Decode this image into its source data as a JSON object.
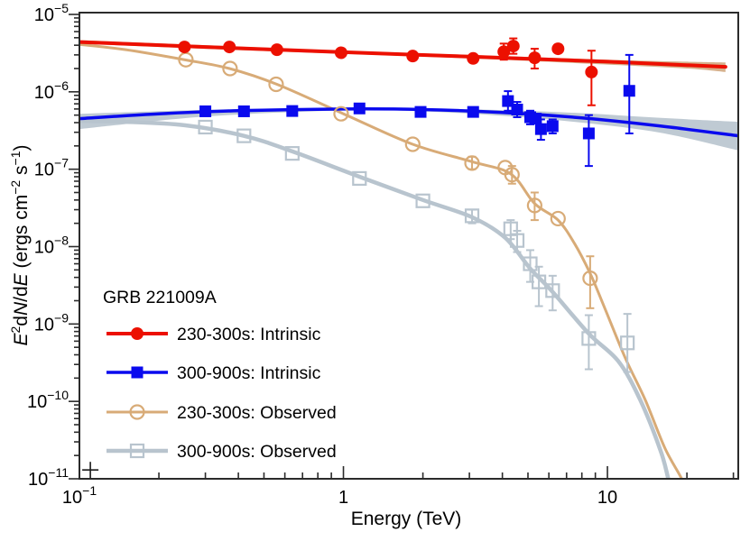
{
  "chart_data": {
    "type": "scatter-line",
    "title": "GRB 221009A",
    "xlabel": "Energy (TeV)",
    "ylabel_parts": [
      {
        "t": "E",
        "italic": true
      },
      {
        "t": "2",
        "sup": true
      },
      {
        "t": "d"
      },
      {
        "t": "N",
        "italic": true
      },
      {
        "t": "/d"
      },
      {
        "t": "E",
        "italic": true
      },
      {
        "t": " (ergs cm"
      },
      {
        "t": "−2",
        "sup": true
      },
      {
        "t": " s"
      },
      {
        "t": "−1",
        "sup": true
      },
      {
        "t": ")"
      }
    ],
    "xscale": "log",
    "yscale": "log",
    "xlim": [
      0.1,
      31.3
    ],
    "ylim": [
      1e-11,
      1e-05
    ],
    "background": "#ffffff",
    "frame_color": "#2b2b2b",
    "grid": false,
    "x_ticks": [
      {
        "v": 0.1,
        "base": "10",
        "exp": "−1"
      },
      {
        "v": 1,
        "base": "1",
        "exp": ""
      },
      {
        "v": 10,
        "base": "10",
        "exp": ""
      }
    ],
    "y_ticks": [
      {
        "v": 1e-05,
        "base": "10",
        "exp": "−5"
      },
      {
        "v": 1e-06,
        "base": "10",
        "exp": "−6"
      },
      {
        "v": 1e-07,
        "base": "10",
        "exp": "−7"
      },
      {
        "v": 1e-08,
        "base": "10",
        "exp": "−8"
      },
      {
        "v": 1e-09,
        "base": "10",
        "exp": "−9"
      },
      {
        "v": 1e-10,
        "base": "10",
        "exp": "−10"
      },
      {
        "v": 1e-11,
        "base": "10",
        "exp": "−11"
      }
    ],
    "series": [
      {
        "name": "230-300s: Intrinsic",
        "color": "#ec1000",
        "marker": "filled-circle",
        "marker_size": 7,
        "line_width": 4,
        "band_color": "#cfa379",
        "band_opacity": 0.85,
        "curve": [
          [
            0.1,
            4.4e-06
          ],
          [
            0.3,
            3.8e-06
          ],
          [
            1,
            3.25e-06
          ],
          [
            3,
            2.85e-06
          ],
          [
            10,
            2.45e-06
          ],
          [
            28,
            2.1e-06
          ]
        ],
        "band": [
          [
            0.1,
            4.2e-06,
            4.65e-06
          ],
          [
            0.3,
            3.6e-06,
            4e-06
          ],
          [
            1,
            3.1e-06,
            3.4e-06
          ],
          [
            3,
            2.7e-06,
            3e-06
          ],
          [
            10,
            2.25e-06,
            2.6e-06
          ],
          [
            20,
            2e-06,
            2.45e-06
          ],
          [
            28,
            1.8e-06,
            2.4e-06
          ]
        ],
        "points": [
          [
            0.25,
            3.8e-06,
            null,
            null
          ],
          [
            0.37,
            3.8e-06,
            null,
            null
          ],
          [
            0.56,
            3.5e-06,
            null,
            null
          ],
          [
            0.98,
            3.2e-06,
            null,
            null
          ],
          [
            1.83,
            2.9e-06,
            null,
            null
          ],
          [
            3.1,
            2.7e-06,
            2.4e-06,
            3e-06
          ],
          [
            4.05,
            3.3e-06,
            2.6e-06,
            4.2e-06
          ],
          [
            4.4,
            3.9e-06,
            3.1e-06,
            4.9e-06
          ],
          [
            5.3,
            2.75e-06,
            2e-06,
            3.6e-06
          ],
          [
            6.5,
            3.6e-06,
            3.2e-06,
            4.05e-06
          ],
          [
            8.7,
            1.8e-06,
            6.7e-07,
            3.4e-06
          ]
        ]
      },
      {
        "name": "300-900s: Intrinsic",
        "color": "#0a0aee",
        "marker": "filled-square",
        "marker_size": 13,
        "line_width": 3.5,
        "band_color": "#b8c4ce",
        "band_opacity": 0.9,
        "curve": [
          [
            0.1,
            4.5e-07
          ],
          [
            0.2,
            5.2e-07
          ],
          [
            0.4,
            5.7e-07
          ],
          [
            1,
            6e-07
          ],
          [
            2,
            5.9e-07
          ],
          [
            4,
            5.4e-07
          ],
          [
            8,
            4.6e-07
          ],
          [
            16,
            3.6e-07
          ],
          [
            31.3,
            2.7e-07
          ]
        ],
        "band": [
          [
            0.1,
            3.3e-07,
            5.2e-07
          ],
          [
            0.3,
            4.8e-07,
            5.85e-07
          ],
          [
            1,
            5.75e-07,
            6.2e-07
          ],
          [
            2,
            5.6e-07,
            6.05e-07
          ],
          [
            4,
            4.9e-07,
            5.8e-07
          ],
          [
            8,
            4e-07,
            5.3e-07
          ],
          [
            16,
            2.95e-07,
            4.6e-07
          ],
          [
            31.3,
            1.75e-07,
            4.1e-07
          ]
        ],
        "points": [
          [
            0.3,
            5.6e-07,
            null,
            null
          ],
          [
            0.42,
            5.6e-07,
            null,
            null
          ],
          [
            0.64,
            5.65e-07,
            null,
            null
          ],
          [
            1.15,
            6.1e-07,
            null,
            null
          ],
          [
            1.96,
            5.5e-07,
            null,
            null
          ],
          [
            3.1,
            5.5e-07,
            4.8e-07,
            6.3e-07
          ],
          [
            4.2,
            7.6e-07,
            5.7e-07,
            1.02e-06
          ],
          [
            4.55,
            5.9e-07,
            4.7e-07,
            7.4e-07
          ],
          [
            5.1,
            4.7e-07,
            3.8e-07,
            5.7e-07
          ],
          [
            5.35,
            4.5e-07,
            null,
            null
          ],
          [
            5.6,
            3.3e-07,
            2.4e-07,
            4.4e-07
          ],
          [
            6.2,
            3.6e-07,
            2.9e-07,
            4.4e-07
          ],
          [
            8.5,
            2.9e-07,
            1.1e-07,
            5e-07
          ],
          [
            12.1,
            1.03e-06,
            2.9e-07,
            3e-06
          ]
        ]
      },
      {
        "name": "230-300s: Observed",
        "color": "#d8ab77",
        "marker": "open-circle",
        "marker_size": 7.5,
        "line_width": 3,
        "band_color": null,
        "band": null,
        "curve": [
          [
            0.1,
            4.1e-06
          ],
          [
            0.15,
            3.5e-06
          ],
          [
            0.25,
            2.6e-06
          ],
          [
            0.37,
            2e-06
          ],
          [
            0.56,
            1.25e-06
          ],
          [
            1.0,
            5.2e-07
          ],
          [
            1.83,
            2.1e-07
          ],
          [
            3.07,
            1.25e-07
          ],
          [
            4.3,
            8.7e-08
          ],
          [
            5.3,
            3.6e-08
          ],
          [
            6.5,
            2.2e-08
          ],
          [
            7.5,
            1.1e-08
          ],
          [
            8.6,
            4.5e-09
          ],
          [
            9.7,
            1.7e-09
          ],
          [
            11.7,
            3.6e-10
          ],
          [
            13.9,
            1.05e-10
          ],
          [
            16.5,
            2.5e-11
          ],
          [
            19.1,
            1e-11
          ],
          [
            19.6,
            7e-12
          ]
        ],
        "points": [
          [
            0.253,
            2.6e-06,
            null,
            null
          ],
          [
            0.372,
            2e-06,
            null,
            null
          ],
          [
            0.556,
            1.25e-06,
            null,
            null
          ],
          [
            0.98,
            5.2e-07,
            null,
            null
          ],
          [
            1.83,
            2.1e-07,
            null,
            null
          ],
          [
            3.07,
            1.2e-07,
            1e-07,
            1.45e-07
          ],
          [
            4.1,
            1.05e-07,
            null,
            null
          ],
          [
            4.35,
            8.5e-08,
            6.5e-08,
            1.1e-07
          ],
          [
            5.3,
            3.4e-08,
            2.2e-08,
            5e-08
          ],
          [
            6.5,
            2.3e-08,
            null,
            null
          ],
          [
            8.6,
            3.9e-09,
            1.6e-09,
            7.5e-09
          ]
        ]
      },
      {
        "name": "300-900s: Observed",
        "color": "#b8c4ce",
        "marker": "open-square",
        "marker_size": 14,
        "line_width": 4.5,
        "band_color": null,
        "band": null,
        "curve": [
          [
            0.1,
            4.2e-07
          ],
          [
            0.15,
            4.1e-07
          ],
          [
            0.25,
            3.7e-07
          ],
          [
            0.42,
            2.7e-07
          ],
          [
            0.64,
            1.7e-07
          ],
          [
            1.15,
            8e-08
          ],
          [
            2.0,
            4e-08
          ],
          [
            3.07,
            2.4e-08
          ],
          [
            4.1,
            1.3e-08
          ],
          [
            5.1,
            5.2e-09
          ],
          [
            6.2,
            2.6e-09
          ],
          [
            8.5,
            7.5e-10
          ],
          [
            11.0,
            3.3e-10
          ],
          [
            13.3,
            1.05e-10
          ],
          [
            15.9,
            2.3e-11
          ],
          [
            17.0,
            1e-11
          ],
          [
            17.5,
            7e-12
          ]
        ],
        "points": [
          [
            0.3,
            3.5e-07,
            null,
            null
          ],
          [
            0.42,
            2.7e-07,
            null,
            null
          ],
          [
            0.64,
            1.6e-07,
            null,
            null
          ],
          [
            1.15,
            7.6e-08,
            null,
            null
          ],
          [
            2.0,
            3.9e-08,
            null,
            null
          ],
          [
            3.07,
            2.5e-08,
            2e-08,
            3e-08
          ],
          [
            4.3,
            1.7e-08,
            1.25e-08,
            2.2e-08
          ],
          [
            4.55,
            1.2e-08,
            8.5e-09,
            1.6e-08
          ],
          [
            5.1,
            6e-09,
            3.5e-09,
            9e-09
          ],
          [
            5.5,
            3.5e-09,
            1.7e-09,
            5.5e-09
          ],
          [
            6.2,
            2.7e-09,
            1.5e-09,
            4.2e-09
          ],
          [
            8.5,
            6.5e-10,
            2.6e-10,
            1.3e-09
          ],
          [
            11.9,
            5.7e-10,
            2.4e-10,
            1.35e-09
          ]
        ]
      }
    ],
    "extra_marker": {
      "shape": "cross",
      "E": 0.11,
      "value": 1.3e-11,
      "color": "#1a1a1a"
    },
    "legend": {
      "header": "GRB 221009A",
      "position": "lower-left",
      "items": [
        {
          "label": "230-300s: Intrinsic",
          "series": 0
        },
        {
          "label": "300-900s: Intrinsic",
          "series": 1
        },
        {
          "label": "230-300s: Observed",
          "series": 2
        },
        {
          "label": "300-900s: Observed",
          "series": 3
        }
      ]
    }
  }
}
